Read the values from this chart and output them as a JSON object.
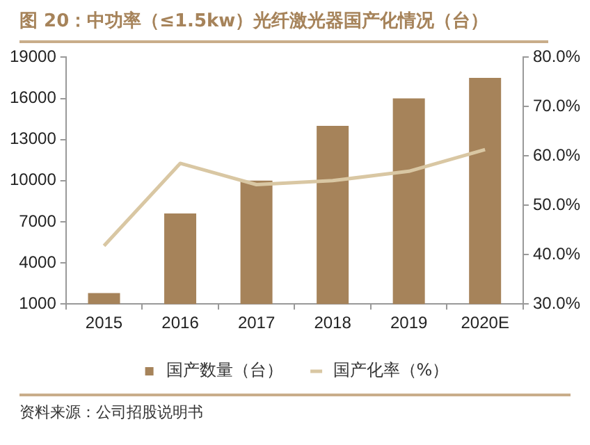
{
  "chart_data": {
    "type": "bar",
    "title": "图 20：中功率（≤1.5kw）光纤激光器国产化情况（台）",
    "categories": [
      "2015",
      "2016",
      "2017",
      "2018",
      "2019",
      "2020E"
    ],
    "series": [
      {
        "name": "国产数量（台）",
        "color": "#a6835a",
        "values": [
          1800,
          7600,
          10000,
          14000,
          16000,
          17500
        ]
      },
      {
        "name": "国产化率（%）",
        "type": "line",
        "axis": "y2",
        "color": "#d9c7a3",
        "values": [
          41.8,
          58.5,
          54.2,
          55,
          56.9,
          61.3
        ]
      }
    ],
    "ylim": [
      1000,
      19000
    ],
    "yticks": [
      1000,
      4000,
      7000,
      10000,
      13000,
      16000,
      19000
    ],
    "y2lim": [
      30,
      80
    ],
    "y2ticks": [
      {
        "value": 30,
        "label": "30.0%"
      },
      {
        "value": 40,
        "label": "40.0%"
      },
      {
        "value": 50,
        "label": "50.0%"
      },
      {
        "value": 60,
        "label": "60.0%"
      },
      {
        "value": 70,
        "label": "70.0%"
      },
      {
        "value": 80,
        "label": "80.0%"
      }
    ],
    "grid": false,
    "legend": "bottom",
    "marker": "none",
    "line_style": "solid",
    "annotations": [
      "资料来源：公司招股说明书"
    ]
  }
}
